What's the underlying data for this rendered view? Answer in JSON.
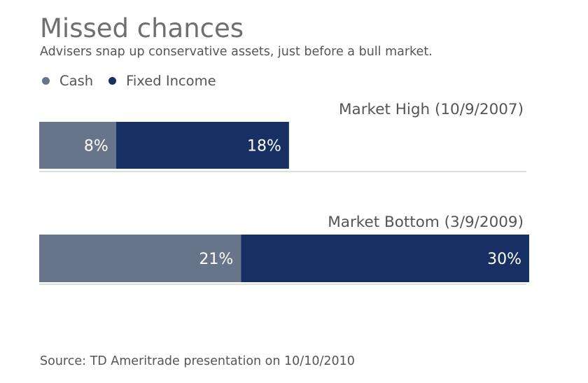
{
  "title": "Missed chances",
  "subtitle": "Advisers snap up conservative assets, just before a bull market.",
  "source": "Source: TD Ameritrade presentation on 10/10/2010",
  "colors": {
    "cash": "#66758a",
    "fixed_income": "#172f63",
    "axis": "#bcbcbc"
  },
  "chart_data": {
    "type": "bar",
    "orientation": "horizontal",
    "stacked": true,
    "categories": [
      "Market High (10/9/2007)",
      "Market Bottom (3/9/2009)"
    ],
    "series": [
      {
        "name": "Cash",
        "values": [
          8,
          21
        ],
        "labels": [
          "8%",
          "21%"
        ],
        "color": "#66758a"
      },
      {
        "name": "Fixed Income",
        "values": [
          18,
          30
        ],
        "labels": [
          "18%",
          "30%"
        ],
        "color": "#172f63"
      }
    ],
    "xlim": [
      0,
      51
    ],
    "unit": "%",
    "legend": "top-left",
    "grid": false
  }
}
